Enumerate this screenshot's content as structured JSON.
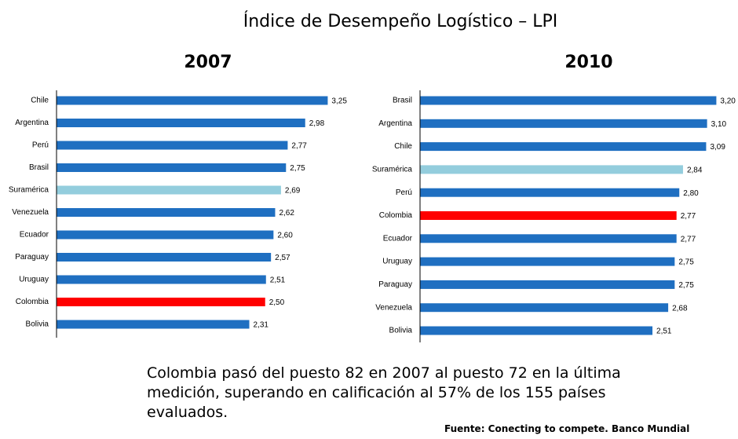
{
  "header": {
    "title": "Índice de Desempeño Logístico – LPI"
  },
  "chart_data": [
    {
      "type": "bar",
      "orientation": "horizontal",
      "subtitle": "2007",
      "categories": [
        "Chile",
        "Argentina",
        "Perú",
        "Brasil",
        "Suramérica",
        "Venezuela",
        "Ecuador",
        "Paraguay",
        "Uruguay",
        "Colombia",
        "Bolivia"
      ],
      "values": [
        3.25,
        2.98,
        2.77,
        2.75,
        2.69,
        2.62,
        2.6,
        2.57,
        2.51,
        2.5,
        2.31
      ],
      "value_labels": [
        "3,25",
        "2,98",
        "2,77",
        "2,75",
        "2,69",
        "2,62",
        "2,60",
        "2,57",
        "2,51",
        "2,50",
        "2,31"
      ],
      "colors": [
        "#1f6fc1",
        "#1f6fc1",
        "#1f6fc1",
        "#1f6fc1",
        "#93cddd",
        "#1f6fc1",
        "#1f6fc1",
        "#1f6fc1",
        "#1f6fc1",
        "#ff0000",
        "#1f6fc1"
      ],
      "xlim": [
        0,
        3.5
      ]
    },
    {
      "type": "bar",
      "orientation": "horizontal",
      "subtitle": "2010",
      "categories": [
        "Brasil",
        "Argentina",
        "Chile",
        "Suramérica",
        "Perú",
        "Colombia",
        "Ecuador",
        "Uruguay",
        "Paraguay",
        "Venezuela",
        "Bolivia"
      ],
      "values": [
        3.2,
        3.1,
        3.09,
        2.84,
        2.8,
        2.77,
        2.77,
        2.75,
        2.75,
        2.68,
        2.51
      ],
      "value_labels": [
        "3,20",
        "3,10",
        "3,09",
        "2,84",
        "2,80",
        "2,77",
        "2,77",
        "2,75",
        "2,75",
        "2,68",
        "2,51"
      ],
      "colors": [
        "#1f6fc1",
        "#1f6fc1",
        "#1f6fc1",
        "#93cddd",
        "#1f6fc1",
        "#ff0000",
        "#1f6fc1",
        "#1f6fc1",
        "#1f6fc1",
        "#1f6fc1",
        "#1f6fc1"
      ],
      "xlim": [
        0,
        3.4
      ]
    }
  ],
  "footer": {
    "note": "Colombia pasó del puesto 82 en 2007 al puesto 72 en la última medición, superando en calificación al 57% de los 155 países evaluados.",
    "source": "Fuente: Conecting to compete. Banco Mundial"
  }
}
